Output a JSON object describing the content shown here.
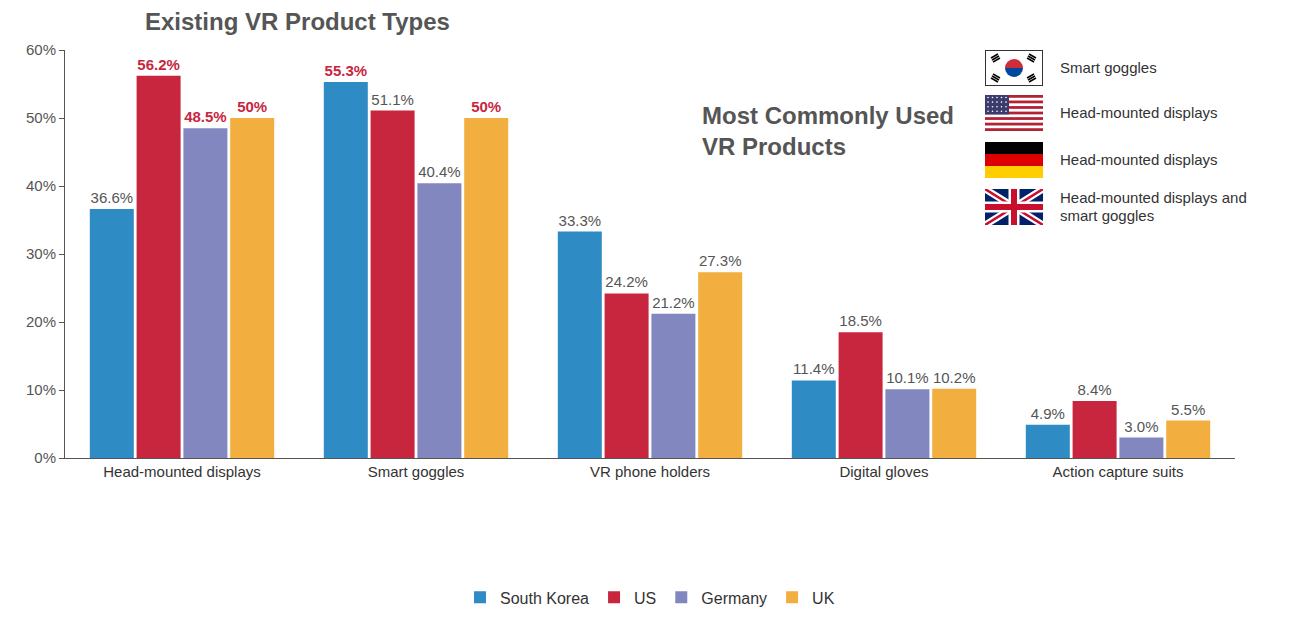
{
  "chart_data": {
    "type": "bar",
    "title": "Existing VR Product Types",
    "categories": [
      "Head-mounted displays",
      "Smart goggles",
      "VR phone holders",
      "Digital gloves",
      "Action capture suits"
    ],
    "series": [
      {
        "name": "South Korea",
        "color": "#2e8bc3",
        "values": [
          36.6,
          55.3,
          33.3,
          11.4,
          4.9
        ],
        "value_labels": [
          "36.6%",
          "55.3%",
          "33.3%",
          "11.4%",
          "4.9%"
        ]
      },
      {
        "name": "US",
        "color": "#c8263f",
        "values": [
          56.2,
          51.1,
          24.2,
          18.5,
          8.4
        ],
        "value_labels": [
          "56.2%",
          "51.1%",
          "24.2%",
          "18.5%",
          "8.4%"
        ]
      },
      {
        "name": "Germany",
        "color": "#8288bf",
        "values": [
          48.5,
          40.4,
          21.2,
          10.1,
          3.0
        ],
        "value_labels": [
          "48.5%",
          "40.4%",
          "21.2%",
          "10.1%",
          "3.0%"
        ]
      },
      {
        "name": "UK",
        "color": "#f2ae3f",
        "values": [
          50,
          50,
          27.3,
          10.2,
          5.5
        ],
        "value_labels": [
          "50%",
          "50%",
          "27.3%",
          "10.2%",
          "5.5%"
        ]
      }
    ],
    "ylim": [
      0,
      60
    ],
    "yticks": [
      {
        "value": 0,
        "label": "0%"
      },
      {
        "value": 10,
        "label": "10%"
      },
      {
        "value": 20,
        "label": "20%"
      },
      {
        "value": 30,
        "label": "30%"
      },
      {
        "value": 40,
        "label": "40%"
      },
      {
        "value": 50,
        "label": "50%"
      },
      {
        "value": 60,
        "label": "60%"
      }
    ],
    "grid": false,
    "data_labels": true,
    "legend": "bottom",
    "annotations": {
      "title": "Most Commonly Used VR Products",
      "items": [
        "Smart goggles",
        "Head-mounted displays",
        "Head-mounted displays",
        "Head-mounted displays and smart goggles"
      ]
    }
  }
}
